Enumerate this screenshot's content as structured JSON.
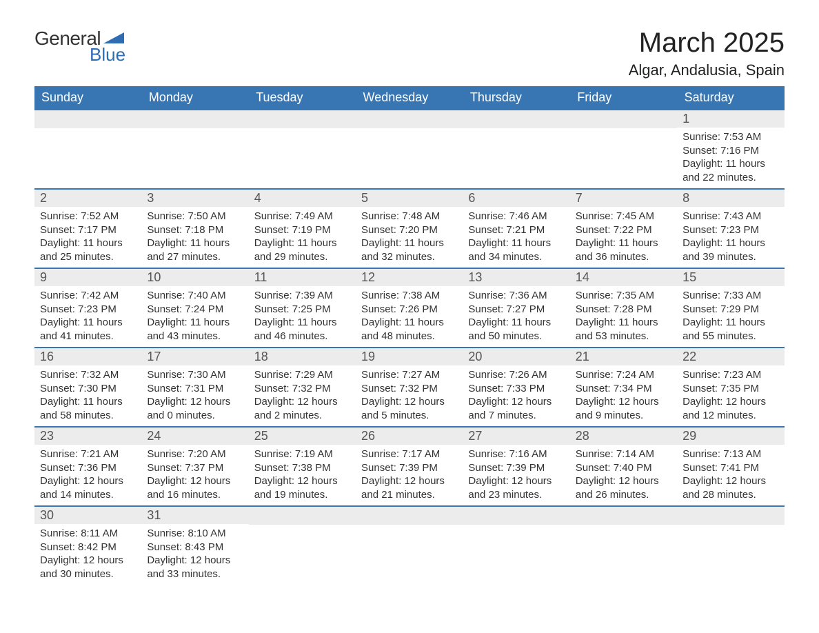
{
  "logo": {
    "text1": "General",
    "text2": "Blue",
    "triangle_color": "#2e6db3"
  },
  "title": "March 2025",
  "location": "Algar, Andalusia, Spain",
  "colors": {
    "header_bg": "#3875b3",
    "header_text": "#ffffff",
    "daynum_bg": "#ececec",
    "text": "#333333"
  },
  "columns": [
    "Sunday",
    "Monday",
    "Tuesday",
    "Wednesday",
    "Thursday",
    "Friday",
    "Saturday"
  ],
  "weeks": [
    [
      null,
      null,
      null,
      null,
      null,
      null,
      {
        "n": "1",
        "sunrise": "7:53 AM",
        "sunset": "7:16 PM",
        "dl": "11 hours and 22 minutes."
      }
    ],
    [
      {
        "n": "2",
        "sunrise": "7:52 AM",
        "sunset": "7:17 PM",
        "dl": "11 hours and 25 minutes."
      },
      {
        "n": "3",
        "sunrise": "7:50 AM",
        "sunset": "7:18 PM",
        "dl": "11 hours and 27 minutes."
      },
      {
        "n": "4",
        "sunrise": "7:49 AM",
        "sunset": "7:19 PM",
        "dl": "11 hours and 29 minutes."
      },
      {
        "n": "5",
        "sunrise": "7:48 AM",
        "sunset": "7:20 PM",
        "dl": "11 hours and 32 minutes."
      },
      {
        "n": "6",
        "sunrise": "7:46 AM",
        "sunset": "7:21 PM",
        "dl": "11 hours and 34 minutes."
      },
      {
        "n": "7",
        "sunrise": "7:45 AM",
        "sunset": "7:22 PM",
        "dl": "11 hours and 36 minutes."
      },
      {
        "n": "8",
        "sunrise": "7:43 AM",
        "sunset": "7:23 PM",
        "dl": "11 hours and 39 minutes."
      }
    ],
    [
      {
        "n": "9",
        "sunrise": "7:42 AM",
        "sunset": "7:23 PM",
        "dl": "11 hours and 41 minutes."
      },
      {
        "n": "10",
        "sunrise": "7:40 AM",
        "sunset": "7:24 PM",
        "dl": "11 hours and 43 minutes."
      },
      {
        "n": "11",
        "sunrise": "7:39 AM",
        "sunset": "7:25 PM",
        "dl": "11 hours and 46 minutes."
      },
      {
        "n": "12",
        "sunrise": "7:38 AM",
        "sunset": "7:26 PM",
        "dl": "11 hours and 48 minutes."
      },
      {
        "n": "13",
        "sunrise": "7:36 AM",
        "sunset": "7:27 PM",
        "dl": "11 hours and 50 minutes."
      },
      {
        "n": "14",
        "sunrise": "7:35 AM",
        "sunset": "7:28 PM",
        "dl": "11 hours and 53 minutes."
      },
      {
        "n": "15",
        "sunrise": "7:33 AM",
        "sunset": "7:29 PM",
        "dl": "11 hours and 55 minutes."
      }
    ],
    [
      {
        "n": "16",
        "sunrise": "7:32 AM",
        "sunset": "7:30 PM",
        "dl": "11 hours and 58 minutes."
      },
      {
        "n": "17",
        "sunrise": "7:30 AM",
        "sunset": "7:31 PM",
        "dl": "12 hours and 0 minutes."
      },
      {
        "n": "18",
        "sunrise": "7:29 AM",
        "sunset": "7:32 PM",
        "dl": "12 hours and 2 minutes."
      },
      {
        "n": "19",
        "sunrise": "7:27 AM",
        "sunset": "7:32 PM",
        "dl": "12 hours and 5 minutes."
      },
      {
        "n": "20",
        "sunrise": "7:26 AM",
        "sunset": "7:33 PM",
        "dl": "12 hours and 7 minutes."
      },
      {
        "n": "21",
        "sunrise": "7:24 AM",
        "sunset": "7:34 PM",
        "dl": "12 hours and 9 minutes."
      },
      {
        "n": "22",
        "sunrise": "7:23 AM",
        "sunset": "7:35 PM",
        "dl": "12 hours and 12 minutes."
      }
    ],
    [
      {
        "n": "23",
        "sunrise": "7:21 AM",
        "sunset": "7:36 PM",
        "dl": "12 hours and 14 minutes."
      },
      {
        "n": "24",
        "sunrise": "7:20 AM",
        "sunset": "7:37 PM",
        "dl": "12 hours and 16 minutes."
      },
      {
        "n": "25",
        "sunrise": "7:19 AM",
        "sunset": "7:38 PM",
        "dl": "12 hours and 19 minutes."
      },
      {
        "n": "26",
        "sunrise": "7:17 AM",
        "sunset": "7:39 PM",
        "dl": "12 hours and 21 minutes."
      },
      {
        "n": "27",
        "sunrise": "7:16 AM",
        "sunset": "7:39 PM",
        "dl": "12 hours and 23 minutes."
      },
      {
        "n": "28",
        "sunrise": "7:14 AM",
        "sunset": "7:40 PM",
        "dl": "12 hours and 26 minutes."
      },
      {
        "n": "29",
        "sunrise": "7:13 AM",
        "sunset": "7:41 PM",
        "dl": "12 hours and 28 minutes."
      }
    ],
    [
      {
        "n": "30",
        "sunrise": "8:11 AM",
        "sunset": "8:42 PM",
        "dl": "12 hours and 30 minutes."
      },
      {
        "n": "31",
        "sunrise": "8:10 AM",
        "sunset": "8:43 PM",
        "dl": "12 hours and 33 minutes."
      },
      null,
      null,
      null,
      null,
      null
    ]
  ],
  "labels": {
    "sunrise": "Sunrise: ",
    "sunset": "Sunset: ",
    "daylight": "Daylight: "
  }
}
